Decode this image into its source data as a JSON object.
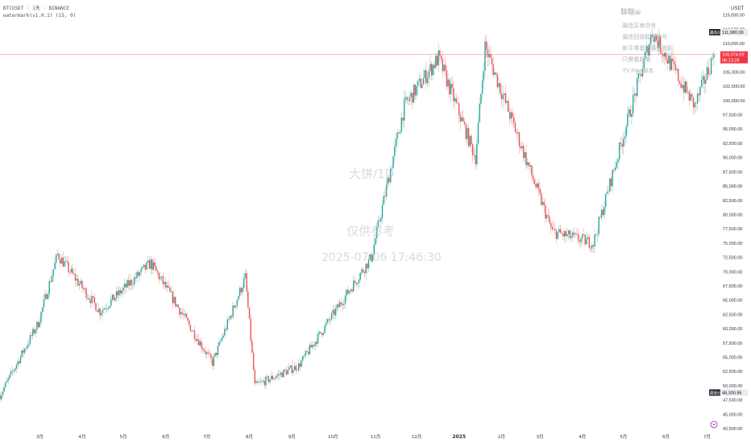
{
  "legend": {
    "symbol_line": "BTCUSDT · 1天 · BINANCE",
    "indicator_line": "watermark(v1.0.1) (15, 0)"
  },
  "watermark": {
    "symbol": "大饼/1D",
    "note": "仅供参考",
    "timestamp": "2025-07-06 17:46:30"
  },
  "info_panel": {
    "header": "聊聊ai",
    "lines": [
      "·最佳买卖信号",
      "·最佳回测胜率信号",
      "·新手零基础最佳指标",
      "·只需看起来",
      "·TV Pine脚本"
    ]
  },
  "price_axis": {
    "currency": "USDT",
    "ticks": [
      115000,
      112500,
      110000,
      107500,
      105000,
      102500,
      100000,
      97500,
      95000,
      92500,
      90000,
      87500,
      85000,
      82500,
      80000,
      77500,
      75000,
      72500,
      70000,
      67500,
      65000,
      62500,
      60000,
      57500,
      55000,
      52500,
      50000,
      47500,
      45000,
      42500
    ],
    "high_badge": {
      "label": "最高价",
      "value": "111,980.00"
    },
    "low_badge": {
      "label": "最低价",
      "value": "48,300.95"
    },
    "last_price": {
      "value": "108,074.59",
      "countdown": "06:13:28"
    }
  },
  "time_axis": {
    "labels": [
      "3月",
      "4月",
      "5月",
      "6月",
      "7月",
      "8月",
      "9月",
      "10月",
      "11月",
      "12月",
      "2025",
      "2月",
      "3月",
      "4月",
      "5月",
      "6月",
      "7月"
    ],
    "bold_label": "2025"
  },
  "chart_data": {
    "type": "candlestick",
    "title": "",
    "xlabel": "",
    "ylabel": "",
    "x_range": [
      "2024-02-01",
      "2025-07-06"
    ],
    "ylim": [
      42500,
      116500
    ],
    "grid": false,
    "colors": {
      "up": "#26a69a",
      "down": "#ef5350",
      "last_price": "#f23645"
    },
    "monthly_closes": {
      "months": [
        "2024-02",
        "2024-03",
        "2024-04",
        "2024-05",
        "2024-06",
        "2024-07",
        "2024-08",
        "2024-09",
        "2024-10",
        "2024-11",
        "2024-12",
        "2025-01",
        "2025-02",
        "2025-03",
        "2025-04",
        "2025-05",
        "2025-06",
        "2025-07"
      ],
      "values": [
        61000,
        71300,
        60600,
        67500,
        62700,
        64600,
        58900,
        63300,
        70200,
        96400,
        93500,
        102400,
        84300,
        82500,
        94200,
        104600,
        107100,
        108074
      ]
    },
    "key_points": [
      {
        "date": "2024-02-01",
        "value": 48300
      },
      {
        "date": "2024-02-29",
        "value": 61000
      },
      {
        "date": "2024-03-14",
        "value": 73000
      },
      {
        "date": "2024-04-14",
        "value": 63000
      },
      {
        "date": "2024-05-21",
        "value": 71500
      },
      {
        "date": "2024-07-05",
        "value": 54000
      },
      {
        "date": "2024-07-29",
        "value": 69000
      },
      {
        "date": "2024-08-05",
        "value": 50000
      },
      {
        "date": "2024-09-06",
        "value": 53500
      },
      {
        "date": "2024-10-29",
        "value": 72500
      },
      {
        "date": "2024-11-22",
        "value": 99000
      },
      {
        "date": "2024-12-17",
        "value": 107500
      },
      {
        "date": "2025-01-13",
        "value": 90000
      },
      {
        "date": "2025-01-20",
        "value": 109500
      },
      {
        "date": "2025-03-10",
        "value": 77000
      },
      {
        "date": "2025-04-09",
        "value": 75000
      },
      {
        "date": "2025-05-22",
        "value": 111980
      },
      {
        "date": "2025-06-22",
        "value": 99000
      },
      {
        "date": "2025-07-06",
        "value": 108074
      }
    ],
    "last_close": 108074.59,
    "period_high": 111980,
    "period_low": 48300.95
  }
}
